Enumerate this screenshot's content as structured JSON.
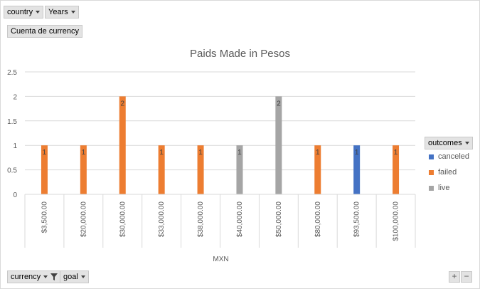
{
  "filters": {
    "country": "country",
    "years": "Years",
    "value_field": "Cuenta de currency",
    "currency": "currency",
    "goal": "goal",
    "outcomes": "outcomes"
  },
  "zoom": {
    "plus": "+",
    "minus": "−"
  },
  "colors": {
    "canceled": "#4472c4",
    "failed": "#ed7d31",
    "live": "#a5a5a5",
    "grid": "#d9d9d9",
    "text": "#595959"
  },
  "chart_data": {
    "type": "bar",
    "title": "Paids Made in Pesos",
    "xlabel": "MXN",
    "ylabel": "",
    "ylim": [
      0,
      2.5
    ],
    "yticks": [
      "0",
      "0.5",
      "1",
      "1.5",
      "2",
      "2.5"
    ],
    "categories": [
      "$3,500.00",
      "$20,000.00",
      "$30,000.00",
      "$33,000.00",
      "$38,000.00",
      "$40,000.00",
      "$50,000.00",
      "$80,000.00",
      "$93,500.00",
      "$100,000.00"
    ],
    "series": [
      {
        "name": "canceled",
        "values": [
          null,
          null,
          null,
          null,
          null,
          null,
          null,
          null,
          1,
          null
        ]
      },
      {
        "name": "failed",
        "values": [
          1,
          1,
          2,
          1,
          1,
          null,
          null,
          1,
          null,
          1
        ]
      },
      {
        "name": "live",
        "values": [
          null,
          null,
          null,
          null,
          null,
          1,
          2,
          null,
          null,
          null
        ]
      }
    ],
    "legend_position": "right",
    "grid": true
  }
}
